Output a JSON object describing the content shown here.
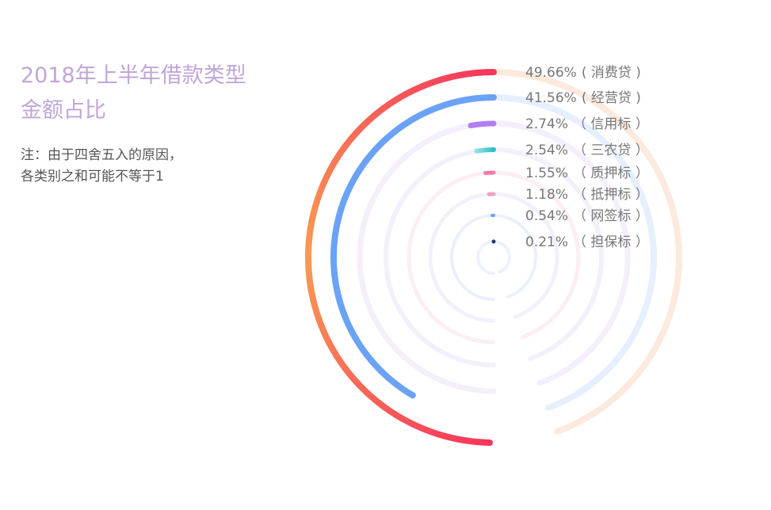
{
  "title_line1": "2018年上半年借款类型",
  "title_line2": "金额占比",
  "note_line1": "注：由于四舍五入的原因，",
  "note_line2": "各类别之和可能不等于1",
  "chart_data": {
    "type": "radial-bar",
    "unit": "%",
    "series": [
      {
        "name": "消费贷",
        "value": 49.66,
        "value_text": "49.66%",
        "name_text": "( 消费贷 )",
        "color_start": "#f5365c",
        "color_end": "#f89a52",
        "track": "#fbeadd"
      },
      {
        "name": "经营贷",
        "value": 41.56,
        "value_text": "41.56%",
        "name_text": "( 经营贷 )",
        "color_start": "#6aa3f5",
        "color_end": "#6aa3f5",
        "track": "#e6effd"
      },
      {
        "name": "信用标",
        "value": 2.74,
        "value_text": "2.74%",
        "name_text": "（ 信用标 ）",
        "color_start": "#b37df2",
        "color_end": "#b37df2",
        "track": "#f4effb"
      },
      {
        "name": "三农贷",
        "value": 2.54,
        "value_text": "2.54%",
        "name_text": "（ 三农贷 ）",
        "color_start": "#2bbfc8",
        "color_end": "#8fe0e4",
        "track": "#f3f0fb"
      },
      {
        "name": "质押标",
        "value": 1.55,
        "value_text": "1.55%",
        "name_text": "（ 质押标 ）",
        "color_start": "#f27aa8",
        "color_end": "#f27aa8",
        "track": "#fbeef4"
      },
      {
        "name": "抵押标",
        "value": 1.18,
        "value_text": "1.18%",
        "name_text": "（ 抵押标 ）",
        "color_start": "#eaa3c6",
        "color_end": "#eaa3c6",
        "track": "#f4f0fb"
      },
      {
        "name": "网签标",
        "value": 0.54,
        "value_text": "0.54%",
        "name_text": "（ 网签标 ）",
        "color_start": "#6aa3f5",
        "color_end": "#6aa3f5",
        "track": "#eaf0fb"
      },
      {
        "name": "担保标",
        "value": 0.21,
        "value_text": "0.21%",
        "name_text": "（ 担保标 ）",
        "color_start": "#1f3a73",
        "color_end": "#1f3a73",
        "track": "#edf2fb"
      }
    ]
  }
}
